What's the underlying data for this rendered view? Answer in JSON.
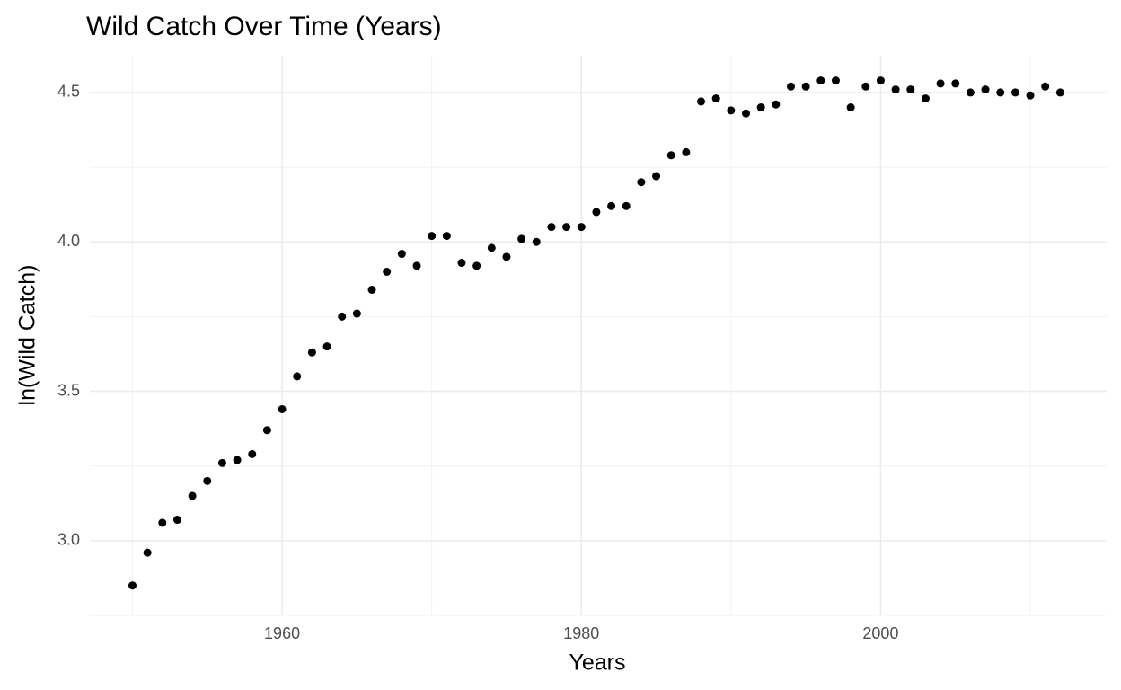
{
  "chart_data": {
    "type": "scatter",
    "title": "Wild Catch Over Time (Years)",
    "x_label": "Years",
    "y_label": "ln(Wild Catch)",
    "x": [
      1950,
      1951,
      1952,
      1953,
      1954,
      1955,
      1956,
      1957,
      1958,
      1959,
      1960,
      1961,
      1962,
      1963,
      1964,
      1965,
      1966,
      1967,
      1968,
      1969,
      1970,
      1971,
      1972,
      1973,
      1974,
      1975,
      1976,
      1977,
      1978,
      1979,
      1980,
      1981,
      1982,
      1983,
      1984,
      1985,
      1986,
      1987,
      1988,
      1989,
      1990,
      1991,
      1992,
      1993,
      1994,
      1995,
      1996,
      1997,
      1998,
      1999,
      2000,
      2001,
      2002,
      2003,
      2004,
      2005,
      2006,
      2007,
      2008,
      2009,
      2010,
      2011,
      2012
    ],
    "values": [
      2.85,
      2.96,
      3.06,
      3.07,
      3.15,
      3.2,
      3.26,
      3.27,
      3.29,
      3.37,
      3.44,
      3.55,
      3.63,
      3.65,
      3.75,
      3.76,
      3.84,
      3.9,
      3.96,
      3.92,
      4.02,
      4.02,
      3.93,
      3.92,
      3.98,
      3.95,
      4.01,
      4.0,
      4.05,
      4.05,
      4.05,
      4.1,
      4.12,
      4.12,
      4.2,
      4.22,
      4.29,
      4.3,
      4.47,
      4.48,
      4.44,
      4.43,
      4.45,
      4.46,
      4.52,
      4.52,
      4.54,
      4.54,
      4.45,
      4.52,
      4.54,
      4.51,
      4.51,
      4.48,
      4.53,
      4.53,
      4.5,
      4.51,
      4.5,
      4.5,
      4.49,
      4.52,
      4.5
    ],
    "color": "#000000",
    "xlim": [
      1947.15,
      2015.1
    ],
    "ylim": [
      2.75,
      4.623
    ],
    "xticks": [
      1960,
      1980,
      2000
    ],
    "yticks": [
      {
        "value": 3,
        "label": "3.0"
      },
      3.5,
      {
        "value": 4,
        "label": "4.0"
      },
      4.5
    ],
    "grid": true,
    "minor_grid": true
  }
}
